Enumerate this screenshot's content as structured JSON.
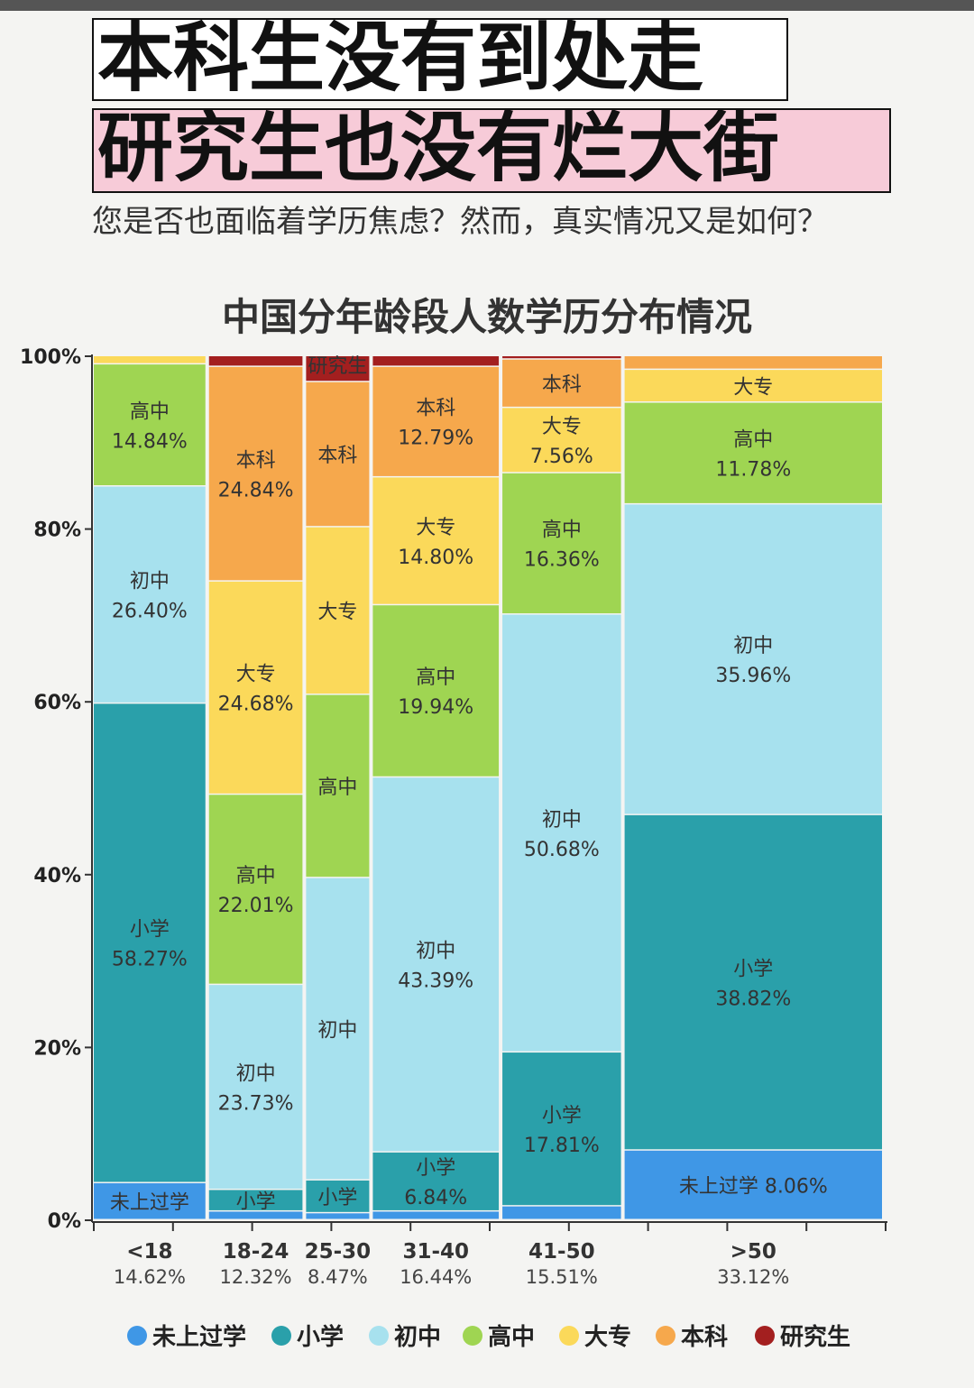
{
  "headline": {
    "line1": "本科生没有到处走",
    "line2": "研究生也没有烂大街",
    "subtitle": "您是否也面临着学历焦虑？然而，真实情况又是如何？"
  },
  "chart_data": {
    "type": "mekko",
    "title": "中国分年龄段人数学历分布情况",
    "xlabel": "",
    "ylabel": "",
    "ylim": [
      0,
      100
    ],
    "yticks": [
      "0%",
      "20%",
      "40%",
      "60%",
      "80%",
      "100%"
    ],
    "legend_position": "bottom",
    "categories": [
      {
        "label": "<18",
        "share_label": "14.62%",
        "share": 14.62
      },
      {
        "label": "18-24",
        "share_label": "12.32%",
        "share": 12.32
      },
      {
        "label": "25-30",
        "share_label": "8.47%",
        "share": 8.47
      },
      {
        "label": "31-40",
        "share_label": "16.44%",
        "share": 16.44
      },
      {
        "label": "41-50",
        "share_label": "15.51%",
        "share": 15.51
      },
      {
        "label": ">50",
        "share_label": "33.12%",
        "share": 33.12
      }
    ],
    "series": [
      {
        "name": "未上过学",
        "color": "#3f97e6",
        "values": [
          4.5,
          1.0,
          0.8,
          1.0,
          1.6,
          8.06
        ],
        "labels": [
          [
            "未上过学"
          ],
          null,
          null,
          null,
          null,
          [
            "未上过学 8.06%"
          ]
        ]
      },
      {
        "name": "小学",
        "color": "#2aa0aa",
        "values": [
          58.27,
          2.5,
          3.8,
          6.84,
          17.81,
          38.82
        ],
        "labels": [
          [
            "小学",
            "58.27%"
          ],
          [
            "小学"
          ],
          [
            "小学"
          ],
          [
            "小学",
            "6.84%"
          ],
          [
            "小学",
            "17.81%"
          ],
          [
            "小学",
            "38.82%"
          ]
        ]
      },
      {
        "name": "初中",
        "color": "#a7e1ee",
        "values": [
          26.4,
          23.73,
          35.0,
          43.39,
          50.68,
          35.96
        ],
        "labels": [
          [
            "初中",
            "26.40%"
          ],
          [
            "初中",
            "23.73%"
          ],
          [
            "初中"
          ],
          [
            "初中",
            "43.39%"
          ],
          [
            "初中",
            "50.68%"
          ],
          [
            "初中",
            "35.96%"
          ]
        ]
      },
      {
        "name": "高中",
        "color": "#9fd552",
        "values": [
          14.84,
          22.01,
          21.2,
          19.94,
          16.36,
          11.78
        ],
        "labels": [
          [
            "高中",
            "14.84%"
          ],
          [
            "高中",
            "22.01%"
          ],
          [
            "高中"
          ],
          [
            "高中",
            "19.94%"
          ],
          [
            "高中",
            "16.36%"
          ],
          [
            "高中",
            "11.78%"
          ]
        ]
      },
      {
        "name": "大专",
        "color": "#fbd95a",
        "values": [
          1.0,
          24.68,
          19.4,
          14.8,
          7.56,
          3.8
        ],
        "labels": [
          null,
          [
            "大专",
            "24.68%"
          ],
          [
            "大专"
          ],
          [
            "大专",
            "14.80%"
          ],
          [
            "大专",
            "7.56%"
          ],
          [
            "大专"
          ]
        ]
      },
      {
        "name": "本科",
        "color": "#f6a84c",
        "values": [
          0,
          24.84,
          16.8,
          12.79,
          5.6,
          1.58
        ],
        "labels": [
          null,
          [
            "本科",
            "24.84%"
          ],
          [
            "本科"
          ],
          [
            "本科",
            "12.79%"
          ],
          [
            "本科"
          ],
          null
        ]
      },
      {
        "name": "研究生",
        "color": "#a31f1f",
        "values": [
          0,
          1.24,
          3.0,
          1.24,
          0.39,
          0
        ],
        "labels": [
          null,
          null,
          [
            "研究生"
          ],
          null,
          null,
          null
        ]
      }
    ]
  }
}
